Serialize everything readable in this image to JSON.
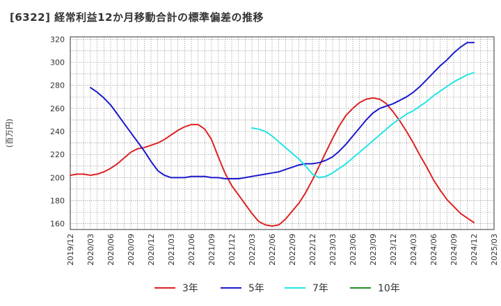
{
  "title": "[6322]  経常利益12か月移動合計の標準偏差の推移",
  "chart_data": {
    "type": "line",
    "title": "[6322]  経常利益12か月移動合計の標準偏差の推移",
    "ylabel": "(百万円)",
    "xlabel": "",
    "ylim": [
      155,
      322
    ],
    "yticks": [
      160,
      180,
      200,
      220,
      240,
      260,
      280,
      300,
      320
    ],
    "xticks": [
      "2019/12",
      "2020/03",
      "2020/06",
      "2020/09",
      "2020/12",
      "2021/03",
      "2021/06",
      "2021/09",
      "2021/12",
      "2022/03",
      "2022/06",
      "2022/09",
      "2022/12",
      "2023/03",
      "2023/06",
      "2023/09",
      "2023/12",
      "2024/03",
      "2024/06",
      "2024/09",
      "2024/12",
      "2025/03"
    ],
    "grid": true,
    "legend_position": "bottom",
    "series": [
      {
        "name": "3年",
        "color": "#dd2222",
        "x": [
          "2019/12",
          "2020/01",
          "2020/02",
          "2020/03",
          "2020/04",
          "2020/05",
          "2020/06",
          "2020/07",
          "2020/08",
          "2020/09",
          "2020/10",
          "2020/11",
          "2020/12",
          "2021/01",
          "2021/02",
          "2021/03",
          "2021/04",
          "2021/05",
          "2021/06",
          "2021/07",
          "2021/08",
          "2021/09",
          "2021/10",
          "2021/11",
          "2021/12",
          "2022/01",
          "2022/02",
          "2022/03",
          "2022/04",
          "2022/05",
          "2022/06",
          "2022/07",
          "2022/08",
          "2022/09",
          "2022/10",
          "2022/11",
          "2022/12",
          "2023/01",
          "2023/02",
          "2023/03",
          "2023/04",
          "2023/05",
          "2023/06",
          "2023/07",
          "2023/08",
          "2023/09",
          "2023/10",
          "2023/11",
          "2023/12",
          "2024/01",
          "2024/02",
          "2024/03",
          "2024/04",
          "2024/05",
          "2024/06",
          "2024/07",
          "2024/08",
          "2024/09",
          "2024/10",
          "2024/11",
          "2024/12"
        ],
        "values": [
          202,
          203,
          203,
          202,
          203,
          205,
          208,
          212,
          217,
          222,
          225,
          226,
          228,
          230,
          233,
          237,
          241,
          244,
          246,
          246,
          242,
          233,
          218,
          204,
          193,
          185,
          177,
          169,
          162,
          159,
          158,
          159,
          164,
          171,
          178,
          187,
          198,
          210,
          222,
          234,
          245,
          254,
          260,
          265,
          268,
          269,
          268,
          264,
          257,
          249,
          240,
          230,
          219,
          209,
          198,
          189,
          181,
          175,
          169,
          165,
          161
        ],
        "values_note": "",
        "display_values": [
          202,
          203,
          203,
          202,
          203,
          205,
          208,
          212,
          217,
          222,
          225,
          226,
          228,
          230,
          233,
          237,
          241,
          244,
          246,
          246,
          242,
          233,
          218,
          204,
          193,
          185,
          177,
          169,
          162,
          159,
          158,
          159,
          164,
          171,
          178,
          187,
          198,
          210,
          222,
          234,
          245,
          254,
          260,
          265,
          268,
          269,
          268,
          264,
          257,
          249,
          240,
          230,
          219,
          209,
          198,
          189,
          181,
          175,
          169,
          165,
          161
        ]
      },
      {
        "name": "5年",
        "color": "#1a1acc",
        "x": [
          "2020/03",
          "2020/04",
          "2020/05",
          "2020/06",
          "2020/07",
          "2020/08",
          "2020/09",
          "2020/10",
          "2020/11",
          "2020/12",
          "2021/01",
          "2021/02",
          "2021/03",
          "2021/04",
          "2021/05",
          "2021/06",
          "2021/07",
          "2021/08",
          "2021/09",
          "2021/10",
          "2021/11",
          "2021/12",
          "2022/01",
          "2022/02",
          "2022/03",
          "2022/04",
          "2022/05",
          "2022/06",
          "2022/07",
          "2022/08",
          "2022/09",
          "2022/10",
          "2022/11",
          "2022/12",
          "2023/01",
          "2023/02",
          "2023/03",
          "2023/04",
          "2023/05",
          "2023/06",
          "2023/07",
          "2023/08",
          "2023/09",
          "2023/10",
          "2023/11",
          "2023/12",
          "2024/01",
          "2024/02",
          "2024/03",
          "2024/04",
          "2024/05",
          "2024/06",
          "2024/07",
          "2024/08",
          "2024/09",
          "2024/10",
          "2024/11",
          "2024/12"
        ],
        "values": [
          278,
          274,
          269,
          263,
          255,
          247,
          239,
          231,
          223,
          214,
          206,
          202,
          200,
          200,
          200,
          201,
          201,
          201,
          200,
          200,
          199,
          199,
          199,
          200,
          201,
          202,
          203,
          204,
          205,
          207,
          209,
          211,
          212,
          212,
          213,
          215,
          218,
          223,
          229,
          236,
          243,
          250,
          256,
          260,
          262,
          264,
          267,
          270,
          274,
          279,
          285,
          291,
          297,
          302,
          308,
          313,
          317,
          317
        ],
        "display_values": [
          278,
          274,
          269,
          263,
          255,
          247,
          239,
          231,
          223,
          214,
          206,
          202,
          200,
          200,
          200,
          201,
          201,
          201,
          200,
          200,
          199,
          199,
          199,
          200,
          201,
          202,
          203,
          204,
          205,
          207,
          209,
          211,
          212,
          212,
          213,
          215,
          218,
          223,
          229,
          236,
          243,
          250,
          256,
          260,
          262,
          264,
          267,
          270,
          274,
          279,
          285,
          291,
          297,
          302,
          308,
          313,
          317,
          317
        ]
      },
      {
        "name": "7年",
        "color": "#22e5e5",
        "x": [
          "2022/03",
          "2022/04",
          "2022/05",
          "2022/06",
          "2022/07",
          "2022/08",
          "2022/09",
          "2022/10",
          "2022/11",
          "2022/12",
          "2023/01",
          "2023/02",
          "2023/03",
          "2023/04",
          "2023/05",
          "2023/06",
          "2023/07",
          "2023/08",
          "2023/09",
          "2023/10",
          "2023/11",
          "2023/12",
          "2024/01",
          "2024/02",
          "2024/03",
          "2024/04",
          "2024/05",
          "2024/06",
          "2024/07",
          "2024/08",
          "2024/09",
          "2024/10",
          "2024/11",
          "2024/12"
        ],
        "values": [
          243,
          242,
          240,
          236,
          231,
          226,
          221,
          216,
          210,
          203,
          200,
          201,
          204,
          208,
          212,
          217,
          222,
          227,
          232,
          237,
          242,
          247,
          251,
          255,
          258,
          262,
          266,
          271,
          275,
          279,
          283,
          286,
          289,
          291
        ],
        "display_values": [
          243,
          242,
          240,
          236,
          231,
          226,
          221,
          216,
          210,
          203,
          200,
          201,
          204,
          208,
          212,
          217,
          222,
          227,
          232,
          237,
          242,
          247,
          251,
          255,
          258,
          262,
          266,
          271,
          275,
          279,
          283,
          286,
          289,
          291
        ]
      },
      {
        "name": "10年",
        "color": "#228b22",
        "x": [],
        "values": [],
        "display_values": []
      }
    ]
  }
}
